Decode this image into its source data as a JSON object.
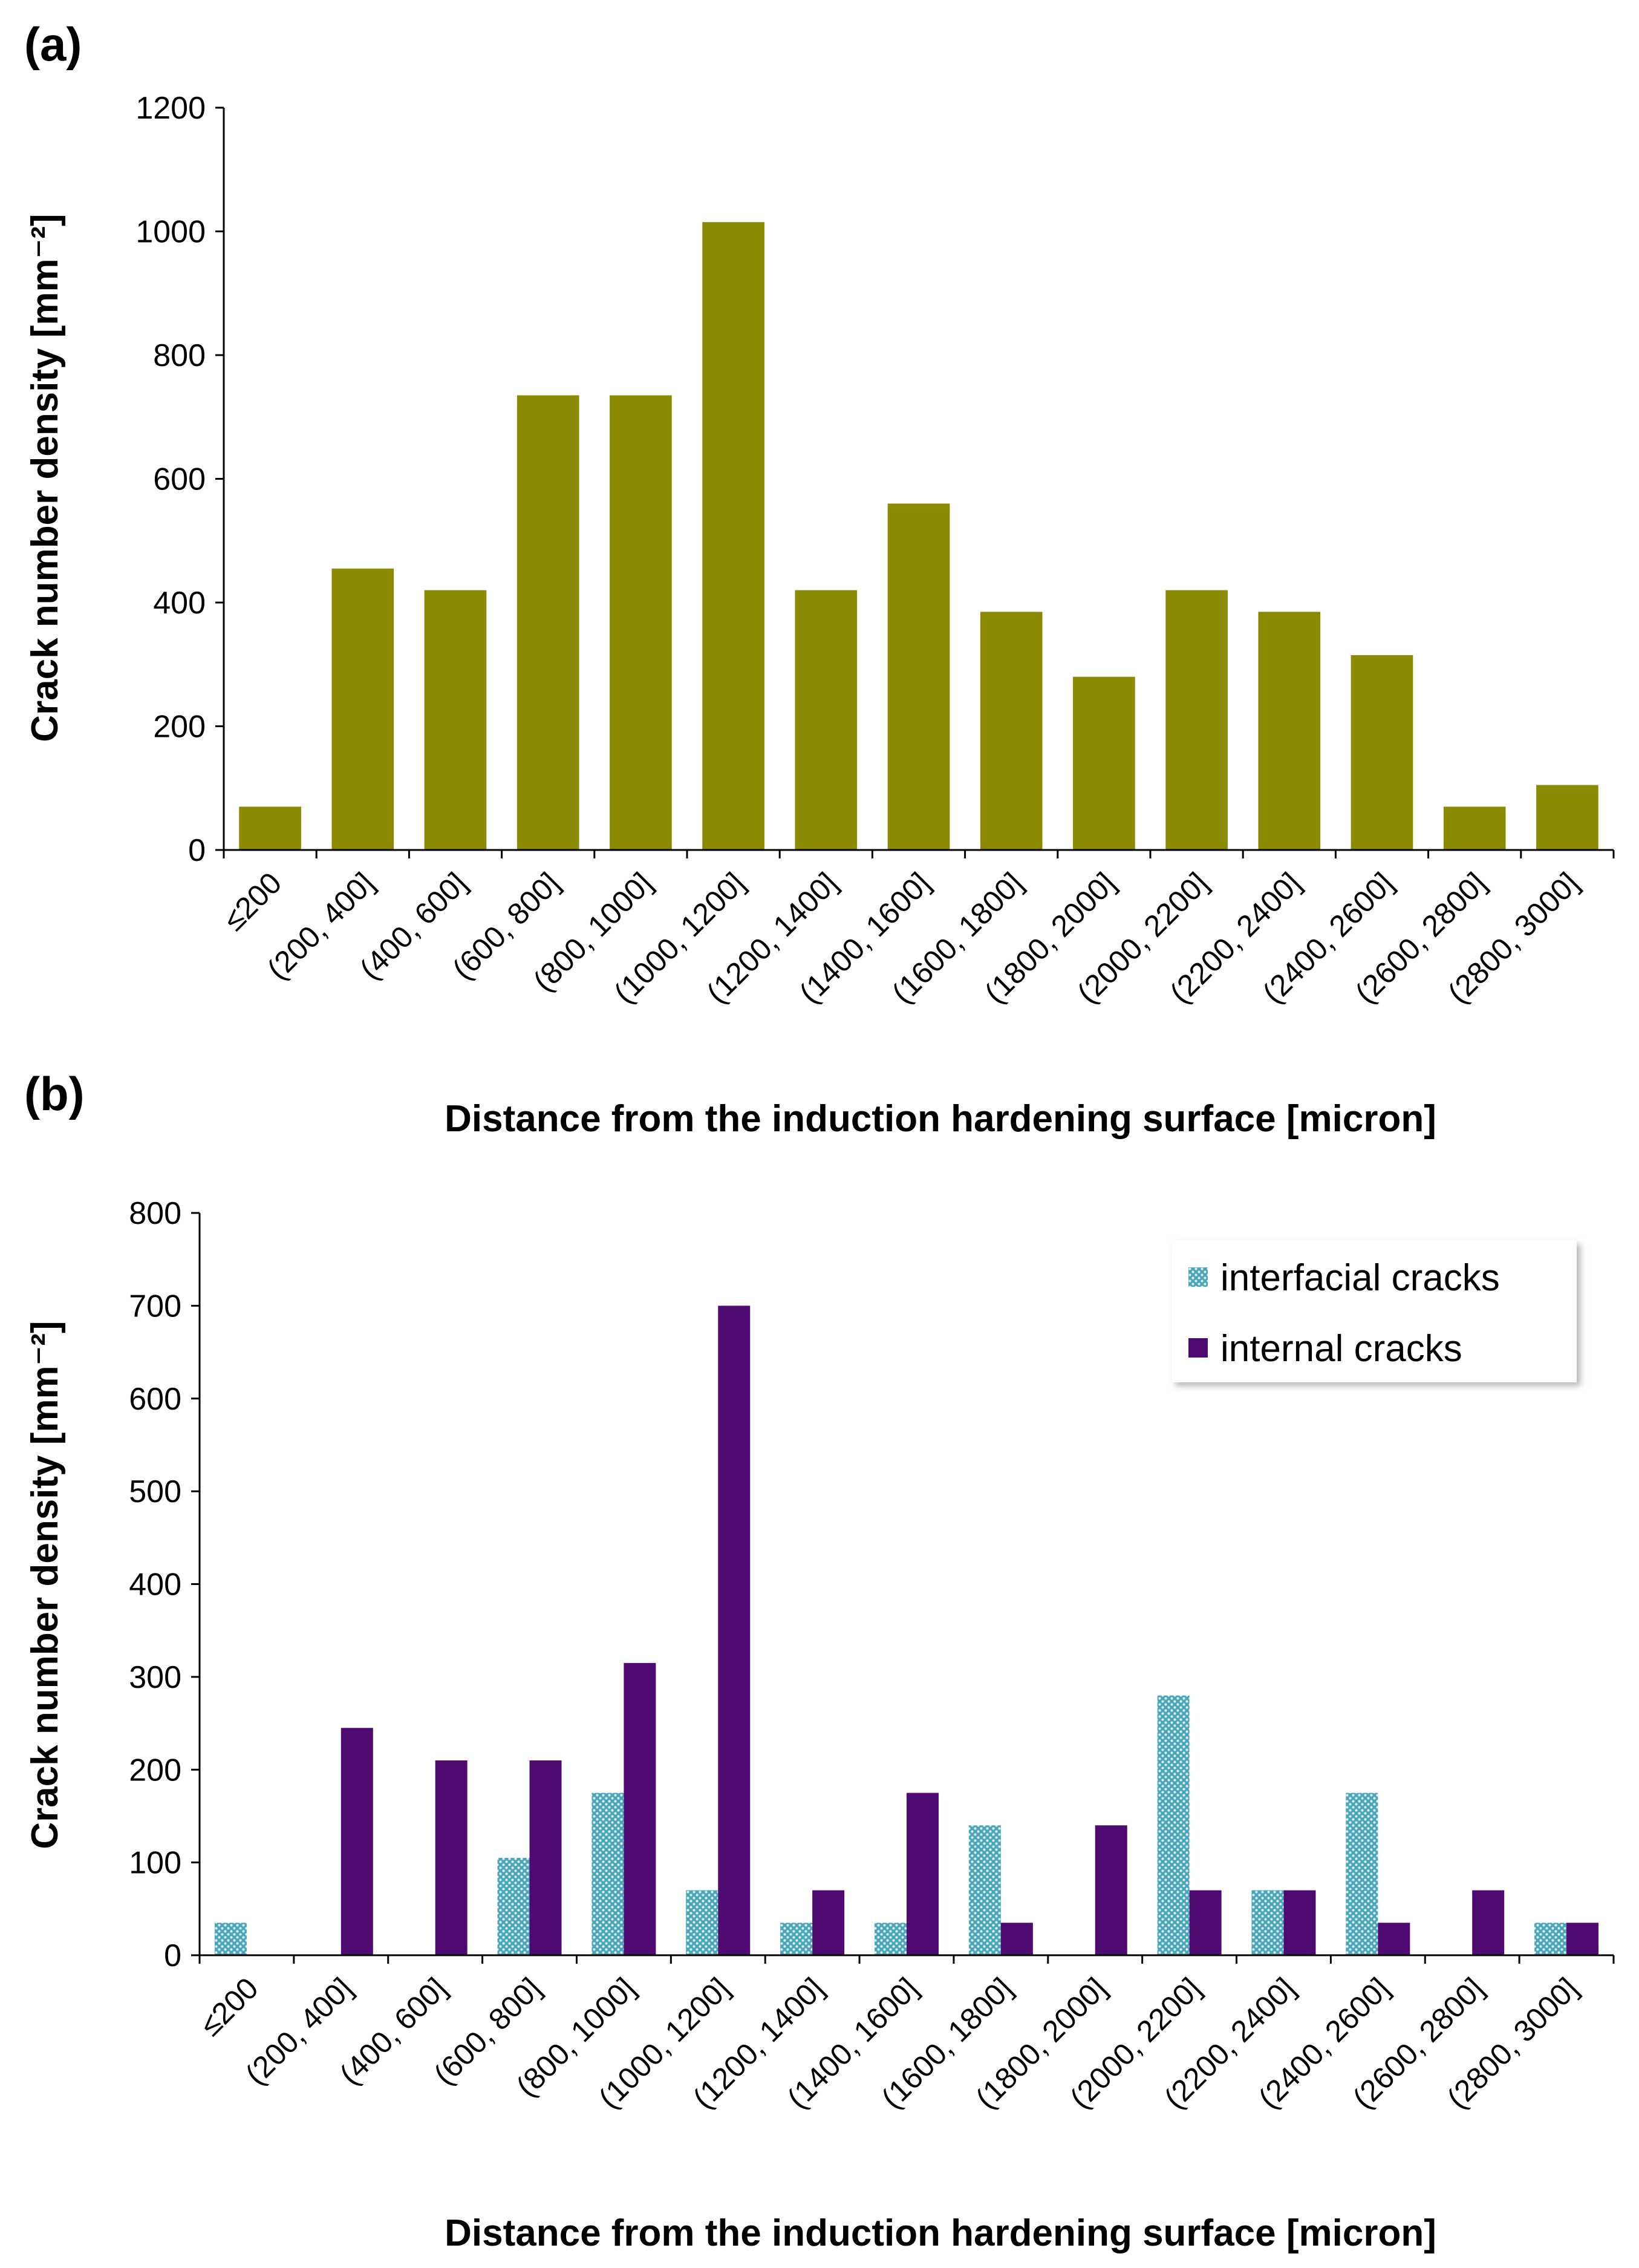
{
  "chart_data": [
    {
      "panel_label": "(a)",
      "type": "bar",
      "categories": [
        "≤200",
        "(200, 400]",
        "(400, 600]",
        "(600, 800]",
        "(800, 1000]",
        "(1000, 1200]",
        "(1200, 1400]",
        "(1400, 1600]",
        "(1600, 1800]",
        "(1800, 2000]",
        "(2000, 2200]",
        "(2200, 2400]",
        "(2400, 2600]",
        "(2600, 2800]",
        "(2800, 3000]"
      ],
      "series": [
        {
          "name": "crack number density",
          "color": "#8a8b00",
          "values": [
            70,
            455,
            420,
            735,
            735,
            1015,
            420,
            560,
            385,
            280,
            420,
            385,
            315,
            70,
            105
          ]
        }
      ],
      "xlabel": "Distance from the induction hardening surface [micron]",
      "ylabel": "Crack number density [mm⁻²]",
      "ylim": [
        0,
        1200
      ],
      "yticks": [
        "0",
        "200",
        "400",
        "600",
        "800",
        "1000",
        "1200"
      ],
      "legend": null
    },
    {
      "panel_label": "(b)",
      "type": "bar",
      "categories": [
        "≤200",
        "(200, 400]",
        "(400, 600]",
        "(600, 800]",
        "(800, 1000]",
        "(1000, 1200]",
        "(1200, 1400]",
        "(1400, 1600]",
        "(1600, 1800]",
        "(1800, 2000]",
        "(2000, 2200]",
        "(2200, 2400]",
        "(2400, 2600]",
        "(2600, 2800]",
        "(2800, 3000]"
      ],
      "series": [
        {
          "name": "interfacial cracks",
          "color": "#3d9bb0",
          "values": [
            35,
            0,
            0,
            105,
            175,
            70,
            35,
            35,
            140,
            0,
            280,
            70,
            175,
            0,
            35
          ]
        },
        {
          "name": "internal cracks",
          "color": "#4f0a72",
          "values": [
            0,
            245,
            210,
            210,
            315,
            700,
            70,
            175,
            35,
            140,
            70,
            70,
            35,
            70,
            35
          ]
        }
      ],
      "xlabel": "Distance from the induction hardening surface [micron]",
      "ylabel": "Crack number density [mm⁻²]",
      "ylim": [
        0,
        800
      ],
      "yticks": [
        "0",
        "100",
        "200",
        "300",
        "400",
        "500",
        "600",
        "700",
        "800"
      ],
      "legend": "top-right"
    }
  ]
}
